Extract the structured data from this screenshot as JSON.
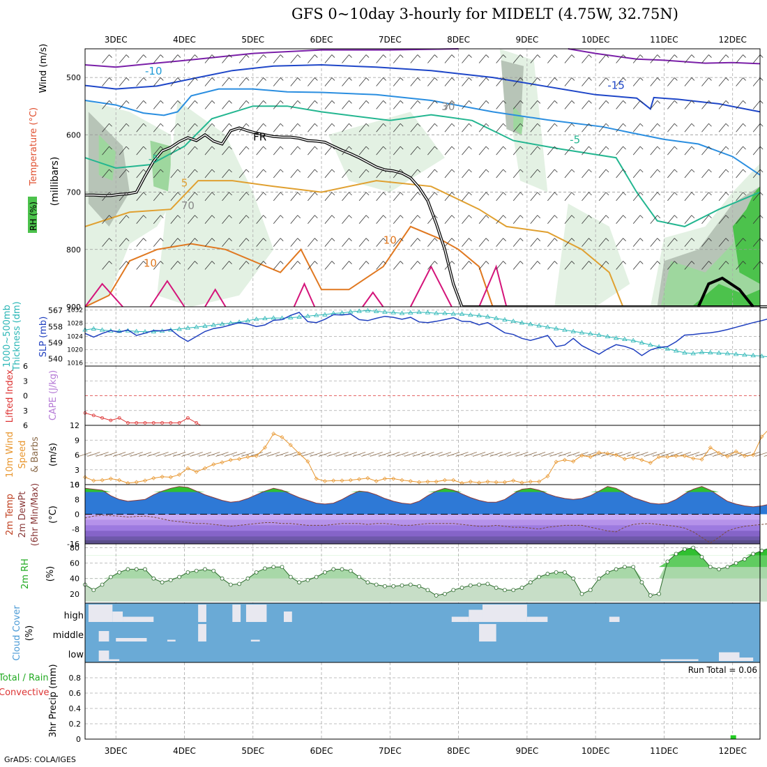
{
  "header": {
    "title": "GFS 0~10day 3-hourly for MIDELT (4.75W, 32.75N)",
    "credit": "GrADS: COLA/IGES"
  },
  "x_axis": {
    "date_labels": [
      "3DEC",
      "4DEC",
      "5DEC",
      "6DEC",
      "7DEC",
      "8DEC",
      "9DEC",
      "10DEC",
      "11DEC",
      "12DEC"
    ]
  },
  "colors": {
    "rh_green_light": "#e3f1e3",
    "rh_green_mid": "#9ed79e",
    "rh_green_dark": "#4cc24c",
    "rh_gray": "#b7c4b7",
    "slp_line": "#1f3fbf",
    "thickness_line": "#2ab6b6",
    "lifted_index": "#dd3333",
    "wind_speed": "#e8962e",
    "temp_fill": "#2e79d6",
    "dewpt_fill": "#9d6fe0",
    "rh2m_fill": "#35c435",
    "cloud_fill": "#6aaad6",
    "precip_bar": "#22cc22"
  },
  "chart_data": [
    {
      "type": "contour",
      "panel": "upper_air",
      "ylabel": [
        "Wind (m/s)",
        "Temperature (°C)",
        "RH (%)",
        "(millibars)"
      ],
      "y_ticks": [
        500,
        600,
        700,
        800,
        900
      ],
      "ylim": [
        900,
        450
      ],
      "contour_labels": [
        "-10",
        "-15",
        "-5",
        "-5",
        "FR",
        "5",
        "10",
        "10",
        "30",
        "70"
      ],
      "freezing_level_mb": [
        705,
        705,
        706,
        706,
        704,
        703,
        700,
        672,
        646,
        628,
        622,
        612,
        605,
        610,
        600,
        611,
        616,
        593,
        588,
        593,
        597,
        600,
        603,
        604,
        604,
        606,
        610,
        611,
        613,
        620,
        627,
        633,
        640,
        648,
        656,
        661,
        663,
        667,
        675,
        692,
        715,
        755,
        800,
        860,
        900,
        900,
        900,
        900,
        900,
        900,
        900,
        900,
        900,
        900,
        900,
        900,
        900,
        900,
        900,
        900,
        900,
        900,
        900,
        900,
        900,
        900,
        900,
        900,
        900,
        900,
        900,
        900,
        900,
        900,
        900,
        900,
        900,
        900,
        900,
        900,
        900
      ]
    },
    {
      "type": "line",
      "panel": "slp_thickness",
      "ylabel_left": [
        "1000~500mb",
        "Thickness (dm)"
      ],
      "ylabel_right": "SLP (mb)",
      "left_ticks": [
        540,
        549,
        558,
        567
      ],
      "right_ticks": [
        1016,
        1020,
        1024,
        1028,
        1032
      ],
      "series": [
        {
          "name": "SLP (mb)",
          "values": [
            1024.9,
            1023.8,
            1024.9,
            1025.8,
            1025.3,
            1026.0,
            1024.3,
            1025.0,
            1025.8,
            1025.7,
            1026.1,
            1024.0,
            1022.5,
            1024.0,
            1025.5,
            1026.4,
            1026.8,
            1027.5,
            1028.2,
            1027.8,
            1027.0,
            1027.5,
            1028.9,
            1029.1,
            1030.4,
            1031.3,
            1028.5,
            1028.2,
            1029.2,
            1030.6,
            1030.5,
            1030.8,
            1029.1,
            1028.8,
            1029.5,
            1030.1,
            1029.8,
            1029.2,
            1029.8,
            1028.4,
            1028.2,
            1028.6,
            1029.1,
            1029.7,
            1028.6,
            1028.5,
            1027.5,
            1028.2,
            1026.7,
            1025.1,
            1024.6,
            1023.4,
            1022.8,
            1023.5,
            1024.3,
            1020.9,
            1021.4,
            1023.4,
            1021.2,
            1019.9,
            1018.6,
            1020.2,
            1021.5,
            1021.0,
            1020.1,
            1018.2,
            1019.9,
            1020.7,
            1020.9,
            1022.4,
            1024.4,
            1024.6,
            1024.9,
            1025.1,
            1025.5,
            1026.1,
            1026.8,
            1027.5,
            1028.2,
            1028.8,
            1029.5
          ]
        },
        {
          "name": "Thickness (dm)",
          "values": [
            556.2,
            556.8,
            556.1,
            555.6,
            555.4,
            555.7,
            555.3,
            555.1,
            555.2,
            555.5,
            556.1,
            556.6,
            557.2,
            557.7,
            558.3,
            558.8,
            559.4,
            559.9,
            560.5,
            561.3,
            562.1,
            562.5,
            562.8,
            562.7,
            563.0,
            563.3,
            563.8,
            564.3,
            564.6,
            565.3,
            565.6,
            566.2,
            566.6,
            566.9,
            566.5,
            566.1,
            565.8,
            565.4,
            565.7,
            566.0,
            565.8,
            565.4,
            565.4,
            565.1,
            565.0,
            564.5,
            564.1,
            563.5,
            562.6,
            561.8,
            561.0,
            560.1,
            559.3,
            558.5,
            557.7,
            556.9,
            556.1,
            555.3,
            554.6,
            554.0,
            553.3,
            552.4,
            551.6,
            550.9,
            550.2,
            549.0,
            547.8,
            546.7,
            545.6,
            544.5,
            543.4,
            543.0,
            543.7,
            543.5,
            543.3,
            543.0,
            542.6,
            542.2,
            541.9,
            541.5,
            541.1
          ]
        }
      ]
    },
    {
      "type": "line",
      "panel": "cape_li",
      "ylabel_left": "Lifted Index",
      "ylabel_right": "CAPE (J/kg)",
      "li_ticks": [
        -6,
        -3,
        0,
        3,
        6
      ],
      "series": [
        {
          "name": "Lifted Index",
          "values": [
            3.5,
            4.0,
            4.5,
            5.0,
            4.5,
            5.5,
            5.5,
            5.5,
            5.5,
            5.5,
            5.5,
            5.5,
            4.5,
            5.5,
            6.5
          ]
        }
      ]
    },
    {
      "type": "line",
      "panel": "wind10m",
      "ylabel": [
        "10m Wind",
        "Speed",
        "& Barbs",
        "(m/s)"
      ],
      "y_ticks": [
        0,
        3,
        6,
        9,
        12
      ],
      "series": [
        {
          "name": "Speed",
          "values": [
            1.5,
            0.8,
            0.9,
            1.2,
            0.9,
            0.3,
            0.5,
            0.8,
            1.3,
            1.6,
            1.5,
            2.0,
            3.3,
            2.6,
            3.3,
            4.1,
            4.5,
            5.0,
            5.2,
            5.6,
            5.8,
            7.5,
            10.3,
            9.6,
            8.0,
            6.3,
            4.7,
            1.2,
            0.7,
            0.8,
            0.8,
            0.9,
            1.1,
            1.3,
            0.7,
            1.2,
            1.2,
            0.9,
            0.7,
            0.5,
            0.6,
            0.6,
            0.9,
            0.9,
            0.3,
            0.6,
            0.4,
            0.6,
            0.5,
            0.5,
            0.8,
            0.4,
            0.6,
            0.6,
            1.7,
            4.6,
            5.0,
            4.7,
            5.9,
            5.6,
            6.5,
            6.3,
            6.0,
            5.2,
            5.5,
            5.0,
            4.4,
            5.6,
            5.6,
            5.8,
            5.8,
            5.3,
            5.1,
            7.5,
            6.4,
            5.7,
            6.7,
            5.8,
            6.0,
            9.7,
            11.5
          ]
        }
      ]
    },
    {
      "type": "area",
      "panel": "temp2m",
      "ylabel": [
        "2m Temp",
        "2m DewPt",
        "(6hr Min/Max)",
        "(°C)"
      ],
      "y_ticks": [
        -16,
        -8,
        0,
        8,
        16
      ],
      "series": [
        {
          "name": "Temp",
          "values": [
            14.0,
            13.5,
            13.0,
            10.0,
            8.0,
            7.0,
            7.5,
            8.0,
            10.5,
            12.5,
            14.0,
            15.0,
            14.5,
            12.5,
            10.5,
            9.0,
            7.5,
            6.5,
            7.0,
            8.5,
            10.5,
            12.5,
            14.0,
            13.0,
            11.0,
            9.0,
            7.5,
            6.0,
            5.5,
            6.0,
            8.0,
            10.5,
            12.5,
            12.0,
            10.5,
            8.5,
            7.0,
            6.0,
            5.5,
            7.0,
            10.0,
            12.5,
            14.0,
            13.0,
            11.0,
            9.0,
            7.5,
            6.5,
            6.5,
            8.0,
            11.0,
            13.5,
            14.0,
            13.0,
            11.0,
            9.5,
            8.5,
            8.0,
            8.5,
            10.0,
            12.5,
            15.0,
            14.0,
            11.5,
            9.0,
            7.5,
            6.0,
            5.5,
            6.0,
            8.0,
            11.0,
            13.5,
            15.0,
            13.0,
            10.0,
            7.0,
            5.5,
            4.5,
            4.0,
            4.5,
            5.5
          ]
        },
        {
          "name": "DewPt",
          "values": [
            -2.0,
            -1.0,
            -0.5,
            -0.8,
            -1.0,
            -1.5,
            -1.2,
            -1.0,
            -1.5,
            -2.5,
            -3.5,
            -4.0,
            -4.5,
            -5.0,
            -5.0,
            -5.5,
            -6.0,
            -6.5,
            -6.0,
            -5.5,
            -5.0,
            -4.5,
            -4.5,
            -5.0,
            -5.0,
            -5.5,
            -6.0,
            -6.0,
            -6.0,
            -5.5,
            -5.0,
            -5.0,
            -5.0,
            -5.5,
            -5.0,
            -5.0,
            -5.5,
            -6.0,
            -6.0,
            -5.5,
            -5.0,
            -5.0,
            -5.0,
            -5.0,
            -5.5,
            -6.0,
            -6.5,
            -6.5,
            -6.0,
            -6.5,
            -7.0,
            -7.0,
            -7.5,
            -8.0,
            -7.0,
            -6.5,
            -6.0,
            -6.0,
            -6.0,
            -7.0,
            -8.0,
            -9.0,
            -9.5,
            -7.0,
            -5.5,
            -5.0,
            -5.0,
            -5.5,
            -6.0,
            -6.5,
            -7.5,
            -9.5,
            -12.5,
            -15.5,
            -12.5,
            -9.0,
            -7.5,
            -6.5,
            -6.0,
            -5.5,
            -5.0
          ]
        }
      ]
    },
    {
      "type": "area",
      "panel": "rh2m",
      "ylabel": [
        "2m RH",
        "(%)"
      ],
      "y_ticks": [
        20,
        40,
        60,
        80
      ],
      "series": [
        {
          "name": "RH",
          "values": [
            32,
            25,
            32,
            42,
            48,
            52,
            52,
            52,
            40,
            35,
            38,
            42,
            48,
            50,
            52,
            50,
            40,
            32,
            33,
            40,
            48,
            53,
            55,
            55,
            42,
            35,
            38,
            42,
            48,
            52,
            52,
            50,
            42,
            35,
            32,
            30,
            30,
            31,
            32,
            30,
            25,
            18,
            20,
            25,
            28,
            31,
            32,
            33,
            28,
            25,
            25,
            28,
            35,
            42,
            46,
            48,
            48,
            40,
            20,
            25,
            40,
            48,
            52,
            55,
            55,
            35,
            18,
            20,
            62,
            72,
            78,
            80,
            68,
            55,
            52,
            55,
            60,
            65,
            72,
            76,
            80
          ]
        }
      ]
    },
    {
      "type": "heatmap",
      "panel": "cloud_cover",
      "ylabel": [
        "Cloud Cover",
        "(%)"
      ],
      "rows": [
        "high",
        "middle",
        "low"
      ]
    },
    {
      "type": "bar",
      "panel": "precip",
      "ylabel_left": [
        "Total / Rain",
        "Convective"
      ],
      "ylabel_inner": "3hr Precip (mm)",
      "y_ticks": [
        0,
        0.2,
        0.4,
        0.6,
        0.8
      ],
      "run_total": "Run Total = 0.06",
      "bars": [
        {
          "day": 12.0,
          "value": 0.05
        }
      ]
    }
  ]
}
